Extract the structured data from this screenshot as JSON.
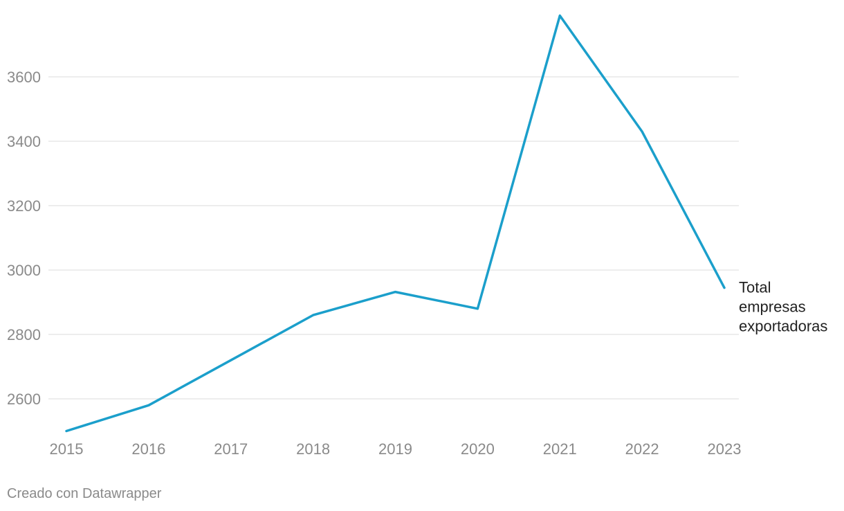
{
  "chart_data": {
    "type": "line",
    "x": [
      "2015",
      "2016",
      "2017",
      "2018",
      "2019",
      "2020",
      "2021",
      "2022",
      "2023"
    ],
    "series": [
      {
        "name": "Total empresas exportadoras",
        "label_lines": [
          "Total",
          "empresas",
          "exportadoras"
        ],
        "values": [
          2500,
          2580,
          2720,
          2860,
          2932,
          2880,
          3790,
          3430,
          2945
        ],
        "color": "#1b9fcb"
      }
    ],
    "yticks": [
      2600,
      2800,
      3000,
      3200,
      3400,
      3600
    ],
    "ylim": [
      2500,
      3800
    ],
    "grid": true,
    "title": "",
    "xlabel": "",
    "ylabel": "",
    "colors": {
      "grid": "#e2e2e2",
      "tick_label": "#8a8a8a"
    }
  },
  "footer": {
    "credit": "Creado con Datawrapper"
  }
}
